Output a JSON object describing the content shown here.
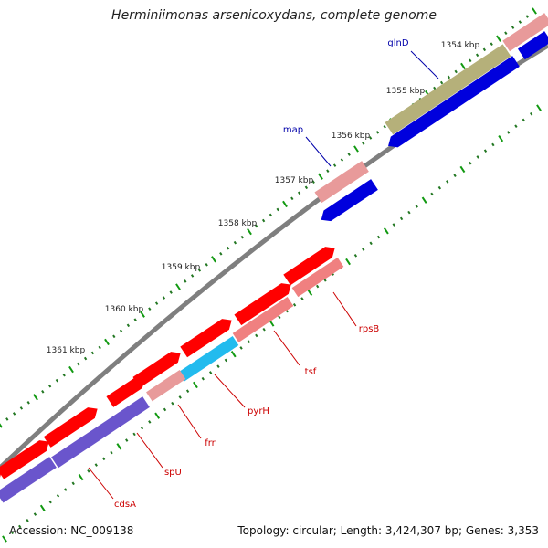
{
  "title": "Herminiimonas arsenicoxydans, complete genome",
  "footer": {
    "accession": "Accession: NC_009138",
    "summary": "Topology: circular; Length: 3,424,307 bp; Genes: 3,353"
  },
  "colors": {
    "forward_cds": "#ff0000",
    "forward_cds_light": "#f08080",
    "reverse_cds": "#0000dd",
    "reverse_cds_light": "#6a55cc",
    "rna_light": "#e89a9a",
    "glnD_band": "#b5b07a",
    "pyrH_band": "#22bbee",
    "backbone": "#7f7f7f",
    "tick_major": "#119911",
    "tick_minor": "#227722",
    "label_forward": "#cc0000",
    "label_reverse": "#0000aa",
    "scale_text": "#222222"
  },
  "scale_labels": [
    {
      "text": "1354 kbp"
    },
    {
      "text": "1355 kbp"
    },
    {
      "text": "1356 kbp"
    },
    {
      "text": "1357 kbp"
    },
    {
      "text": "1358 kbp"
    },
    {
      "text": "1359 kbp"
    },
    {
      "text": "1360 kbp"
    },
    {
      "text": "1361 kbp"
    }
  ],
  "gene_labels": [
    {
      "text": "glnD",
      "strand": "reverse"
    },
    {
      "text": "map",
      "strand": "reverse"
    },
    {
      "text": "rpsB",
      "strand": "forward"
    },
    {
      "text": "tsf",
      "strand": "forward"
    },
    {
      "text": "pyrH",
      "strand": "forward"
    },
    {
      "text": "frr",
      "strand": "forward"
    },
    {
      "text": "ispU",
      "strand": "forward"
    },
    {
      "text": "cdsA",
      "strand": "forward"
    }
  ]
}
